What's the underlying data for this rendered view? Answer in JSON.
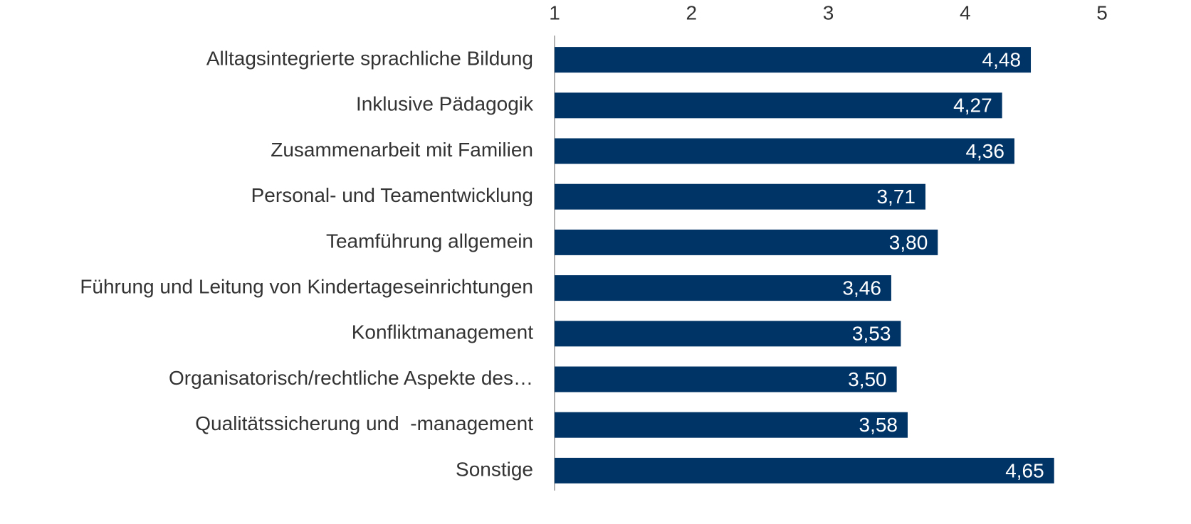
{
  "chart_data": {
    "type": "barh",
    "categories": [
      "Alltagsintegrierte sprachliche Bildung",
      "Inklusive Pädagogik",
      "Zusammenarbeit mit Familien",
      "Personal- und Teamentwicklung",
      "Teamführung allgemein",
      "Führung und Leitung von Kindertageseinrichtungen",
      "Konfliktmanagement",
      "Organisatorisch/rechtliche Aspekte des…",
      "Qualitätssicherung und  -management",
      "Sonstige"
    ],
    "values": [
      4.48,
      4.27,
      4.36,
      3.71,
      3.8,
      3.46,
      3.53,
      3.5,
      3.58,
      4.65
    ],
    "value_labels": [
      "4,48",
      "4,27",
      "4,36",
      "3,71",
      "3,80",
      "3,46",
      "3,53",
      "3,50",
      "3,58",
      "4,65"
    ],
    "color": "#003366",
    "xlim": [
      1,
      5
    ],
    "xticks": [
      1,
      2,
      3,
      4,
      5
    ],
    "grid": false
  }
}
